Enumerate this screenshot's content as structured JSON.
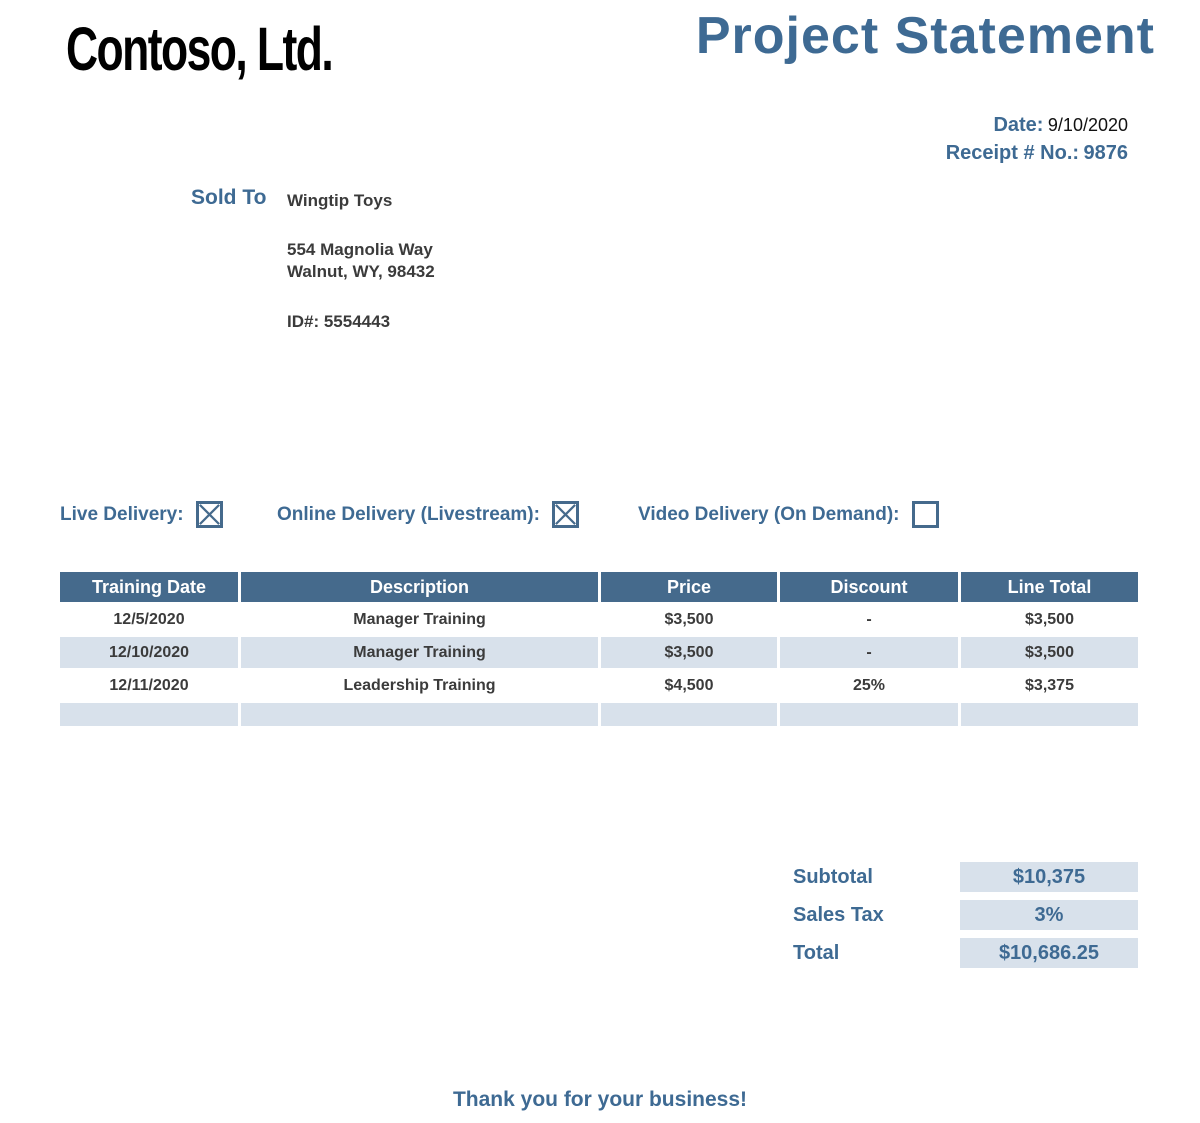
{
  "logo": "Contoso, Ltd.",
  "title": "Project Statement",
  "meta": {
    "date_label": "Date:",
    "date_value": "9/10/2020",
    "receipt_label": "Receipt # No.:",
    "receipt_value": "9876"
  },
  "sold_to": {
    "label": "Sold To",
    "customer_name": "Wingtip Toys",
    "address_line1": "554 Magnolia Way",
    "address_line2": "Walnut, WY, 98432",
    "id_line": "ID#: 5554443"
  },
  "delivery_options": [
    {
      "label": "Live Delivery:",
      "checked": true
    },
    {
      "label": "Online Delivery (Livestream):",
      "checked": true
    },
    {
      "label": "Video Delivery (On Demand):",
      "checked": false
    }
  ],
  "table": {
    "headers": [
      "Training Date",
      "Description",
      "Price",
      "Discount",
      "Line Total"
    ],
    "rows": [
      [
        "12/5/2020",
        "Manager Training",
        "$3,500",
        "-",
        "$3,500"
      ],
      [
        "12/10/2020",
        "Manager Training",
        "$3,500",
        "-",
        "$3,500"
      ],
      [
        "12/11/2020",
        "Leadership Training",
        "$4,500",
        "25%",
        "$3,375"
      ],
      [
        "",
        "",
        "",
        "",
        ""
      ]
    ]
  },
  "totals": [
    {
      "label": "Subtotal",
      "value": "$10,375"
    },
    {
      "label": "Sales Tax",
      "value": "3%"
    },
    {
      "label": "Total",
      "value": "$10,686.25"
    }
  ],
  "footer": "Thank you for your business!",
  "colors": {
    "accent_blue": "#3E6A93",
    "table_header_bg": "#456A8C",
    "row_alt_bg": "#D8E1EB",
    "body_text": "#3B3B3B",
    "logo_black": "#000000"
  }
}
